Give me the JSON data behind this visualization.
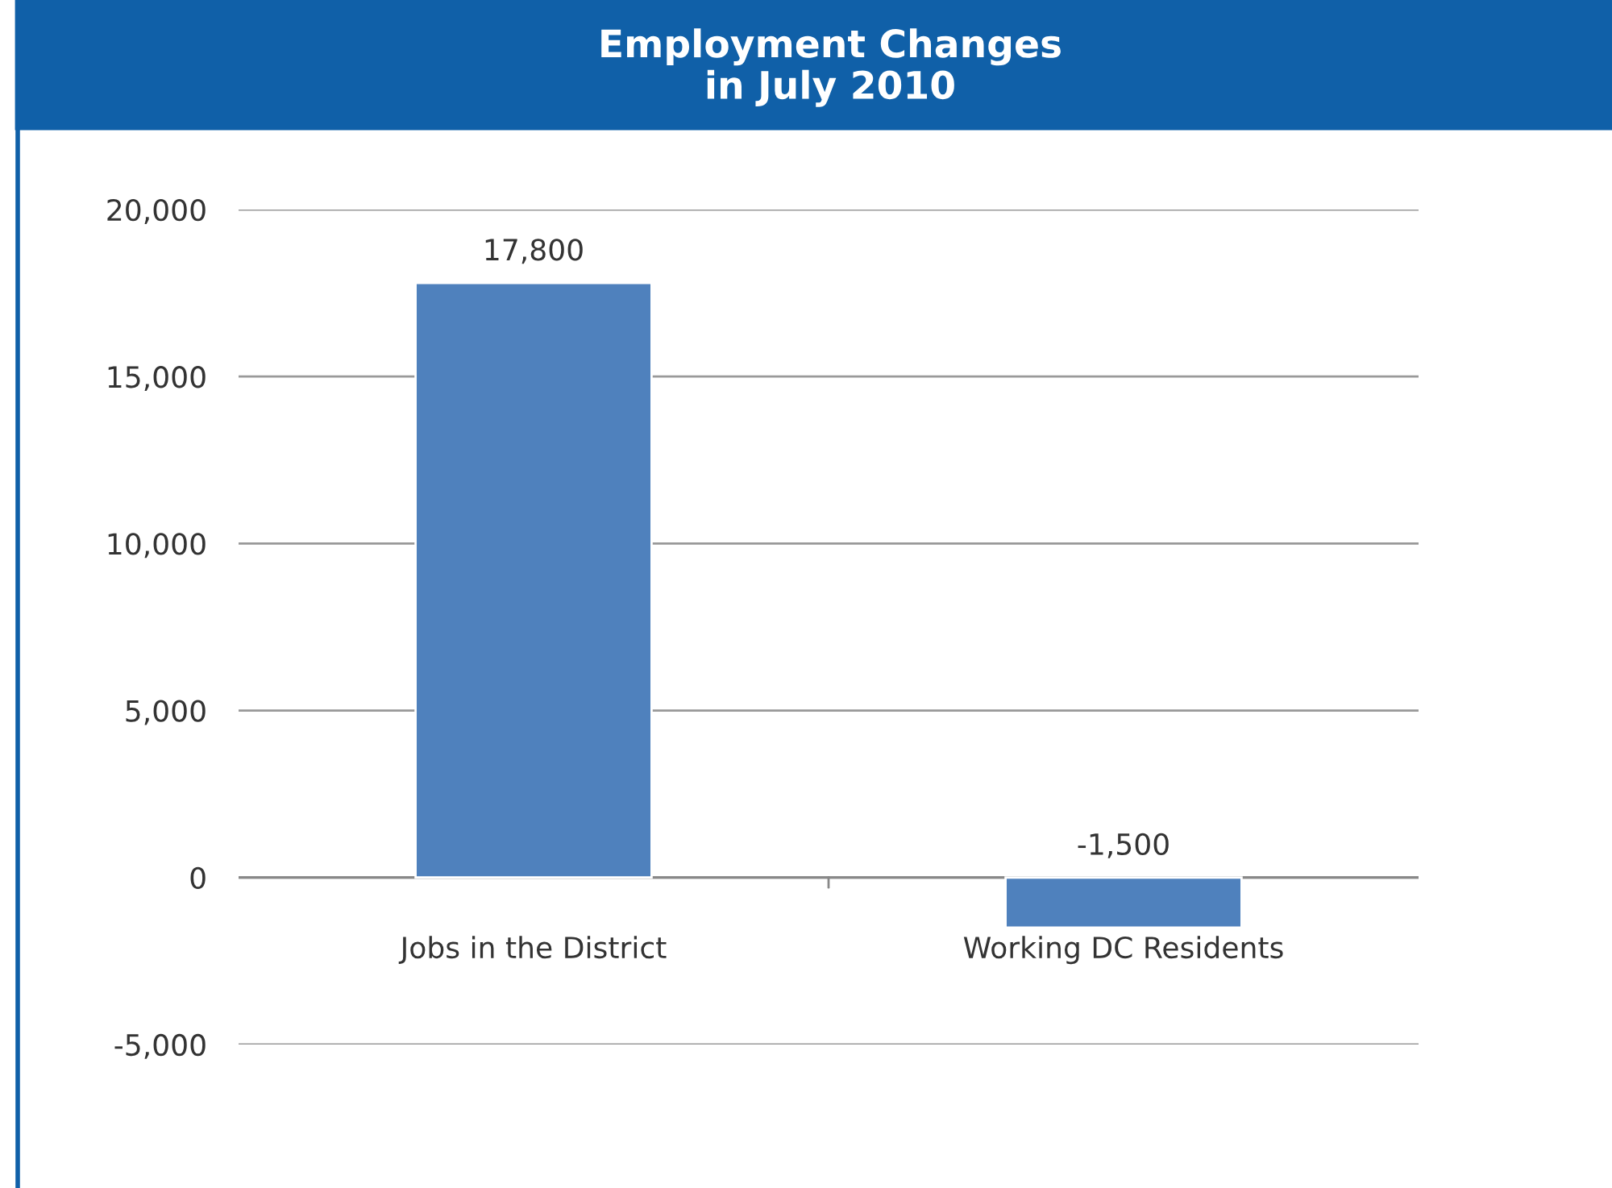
{
  "chart_data": {
    "type": "bar",
    "title": "Employment Changes\nin July 2010",
    "categories": [
      "Jobs in the District",
      "Working DC Residents"
    ],
    "values": [
      17800,
      -1500
    ],
    "color": "#4f81bd",
    "ylim": [
      -5000,
      20000
    ],
    "yticks": [
      {
        "value": -5000,
        "label": "-5,000"
      },
      0,
      {
        "value": 5000,
        "label": "5,000"
      },
      {
        "value": 10000,
        "label": "10,000"
      },
      {
        "value": 15000,
        "label": "15,000"
      },
      {
        "value": 20000,
        "label": "20,000"
      }
    ],
    "value_labels": [
      "17,800",
      "-1,500"
    ],
    "grid": "y",
    "legend": false
  }
}
